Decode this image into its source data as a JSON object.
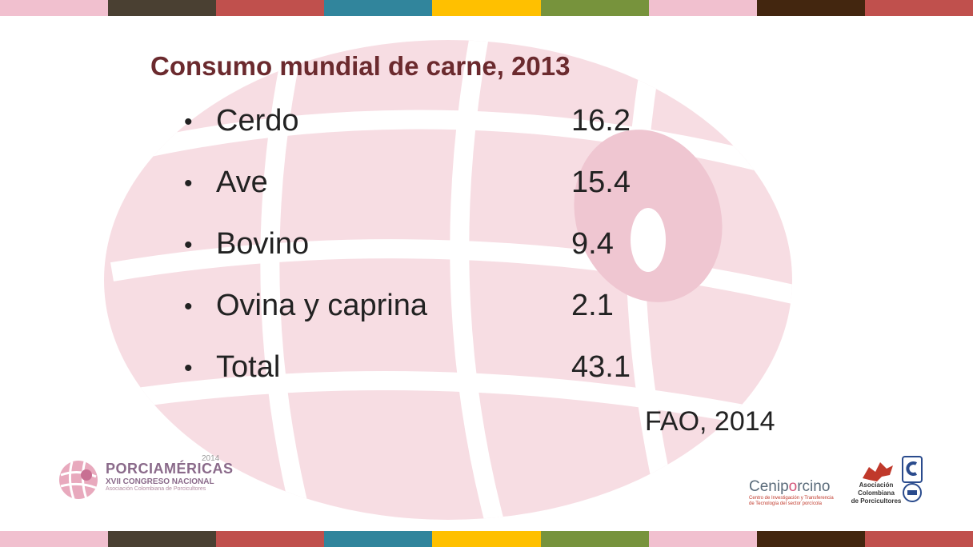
{
  "slide": {
    "title": "Consumo mundial de carne, 2013",
    "bullet_symbol": "•",
    "items": [
      {
        "label": "Cerdo",
        "value": "16.2"
      },
      {
        "label": "Ave",
        "value": "15.4"
      },
      {
        "label": "Bovino",
        "value": "9.4"
      },
      {
        "label": "Ovina y caprina",
        "value": "2.1"
      },
      {
        "label": "Total",
        "value": "43.1"
      }
    ],
    "source": "FAO, 2014"
  },
  "logos": {
    "porciamericas_name": "PORCIAMÉRICAS",
    "porciamericas_year": "2014",
    "porciamericas_event": "XVII CONGRESO NACIONAL",
    "porciamericas_org": "Asociación Colombiana de Porcicultores",
    "ceniporcino_prefix": "Cenip",
    "ceniporcino_o": "o",
    "ceniporcino_suffix": "rcino",
    "ceniporcino_tagline_1": "Centro de Investigación y Transferencia",
    "ceniporcino_tagline_2": "de Tecnología del sector porcícola",
    "asociacion_line_1": "Asociación",
    "asociacion_line_2": "Colombiana",
    "asociacion_line_3": "de Porcicultores"
  },
  "colors": {
    "title": "#6b2a2e",
    "body_text": "#222222",
    "globe_fill": "#f6dbe1",
    "stripes": [
      "#f1c0cf",
      "#4a4032",
      "#c0504d",
      "#31859c",
      "#ffc000",
      "#77933c",
      "#f1c0cf",
      "#43260f",
      "#c0504d"
    ]
  }
}
